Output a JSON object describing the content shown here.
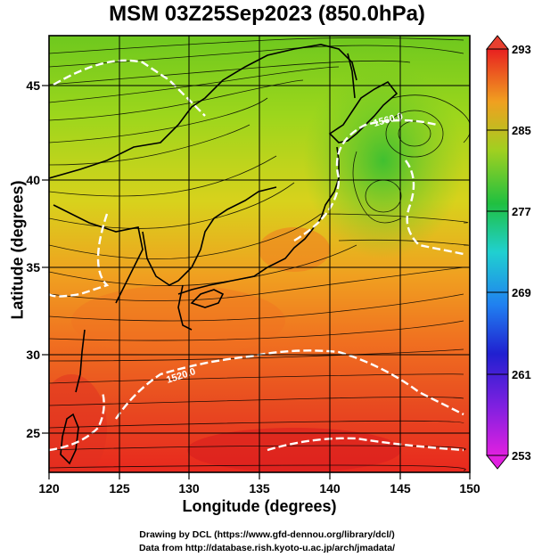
{
  "title": "MSM 03Z25Sep2023 (850.0hPa)",
  "x_axis": {
    "label": "Longitude (degrees)",
    "ticks": [
      "120",
      "125",
      "130",
      "135",
      "140",
      "145",
      "150"
    ]
  },
  "y_axis": {
    "label": "Latitude  (degrees)",
    "ticks": [
      "25",
      "30",
      "35",
      "40",
      "45"
    ]
  },
  "colorbar": {
    "ticks": [
      "293",
      "285",
      "277",
      "269",
      "261",
      "253"
    ]
  },
  "contour_labels": [
    "1560.0",
    "1520.0"
  ],
  "footer": {
    "line1": "Drawing by DCL (https://www.gfd-dennou.org/library/dcl/)",
    "line2": "Data from http://database.rish.kyoto-u.ac.jp/arch/jmadata/"
  },
  "colors": {
    "warm": "#e8281e",
    "mid": "#f0a020",
    "cool": "#9cd61c",
    "cold": "#30c030",
    "contour": "#ffffff",
    "streamline": "#000000"
  }
}
